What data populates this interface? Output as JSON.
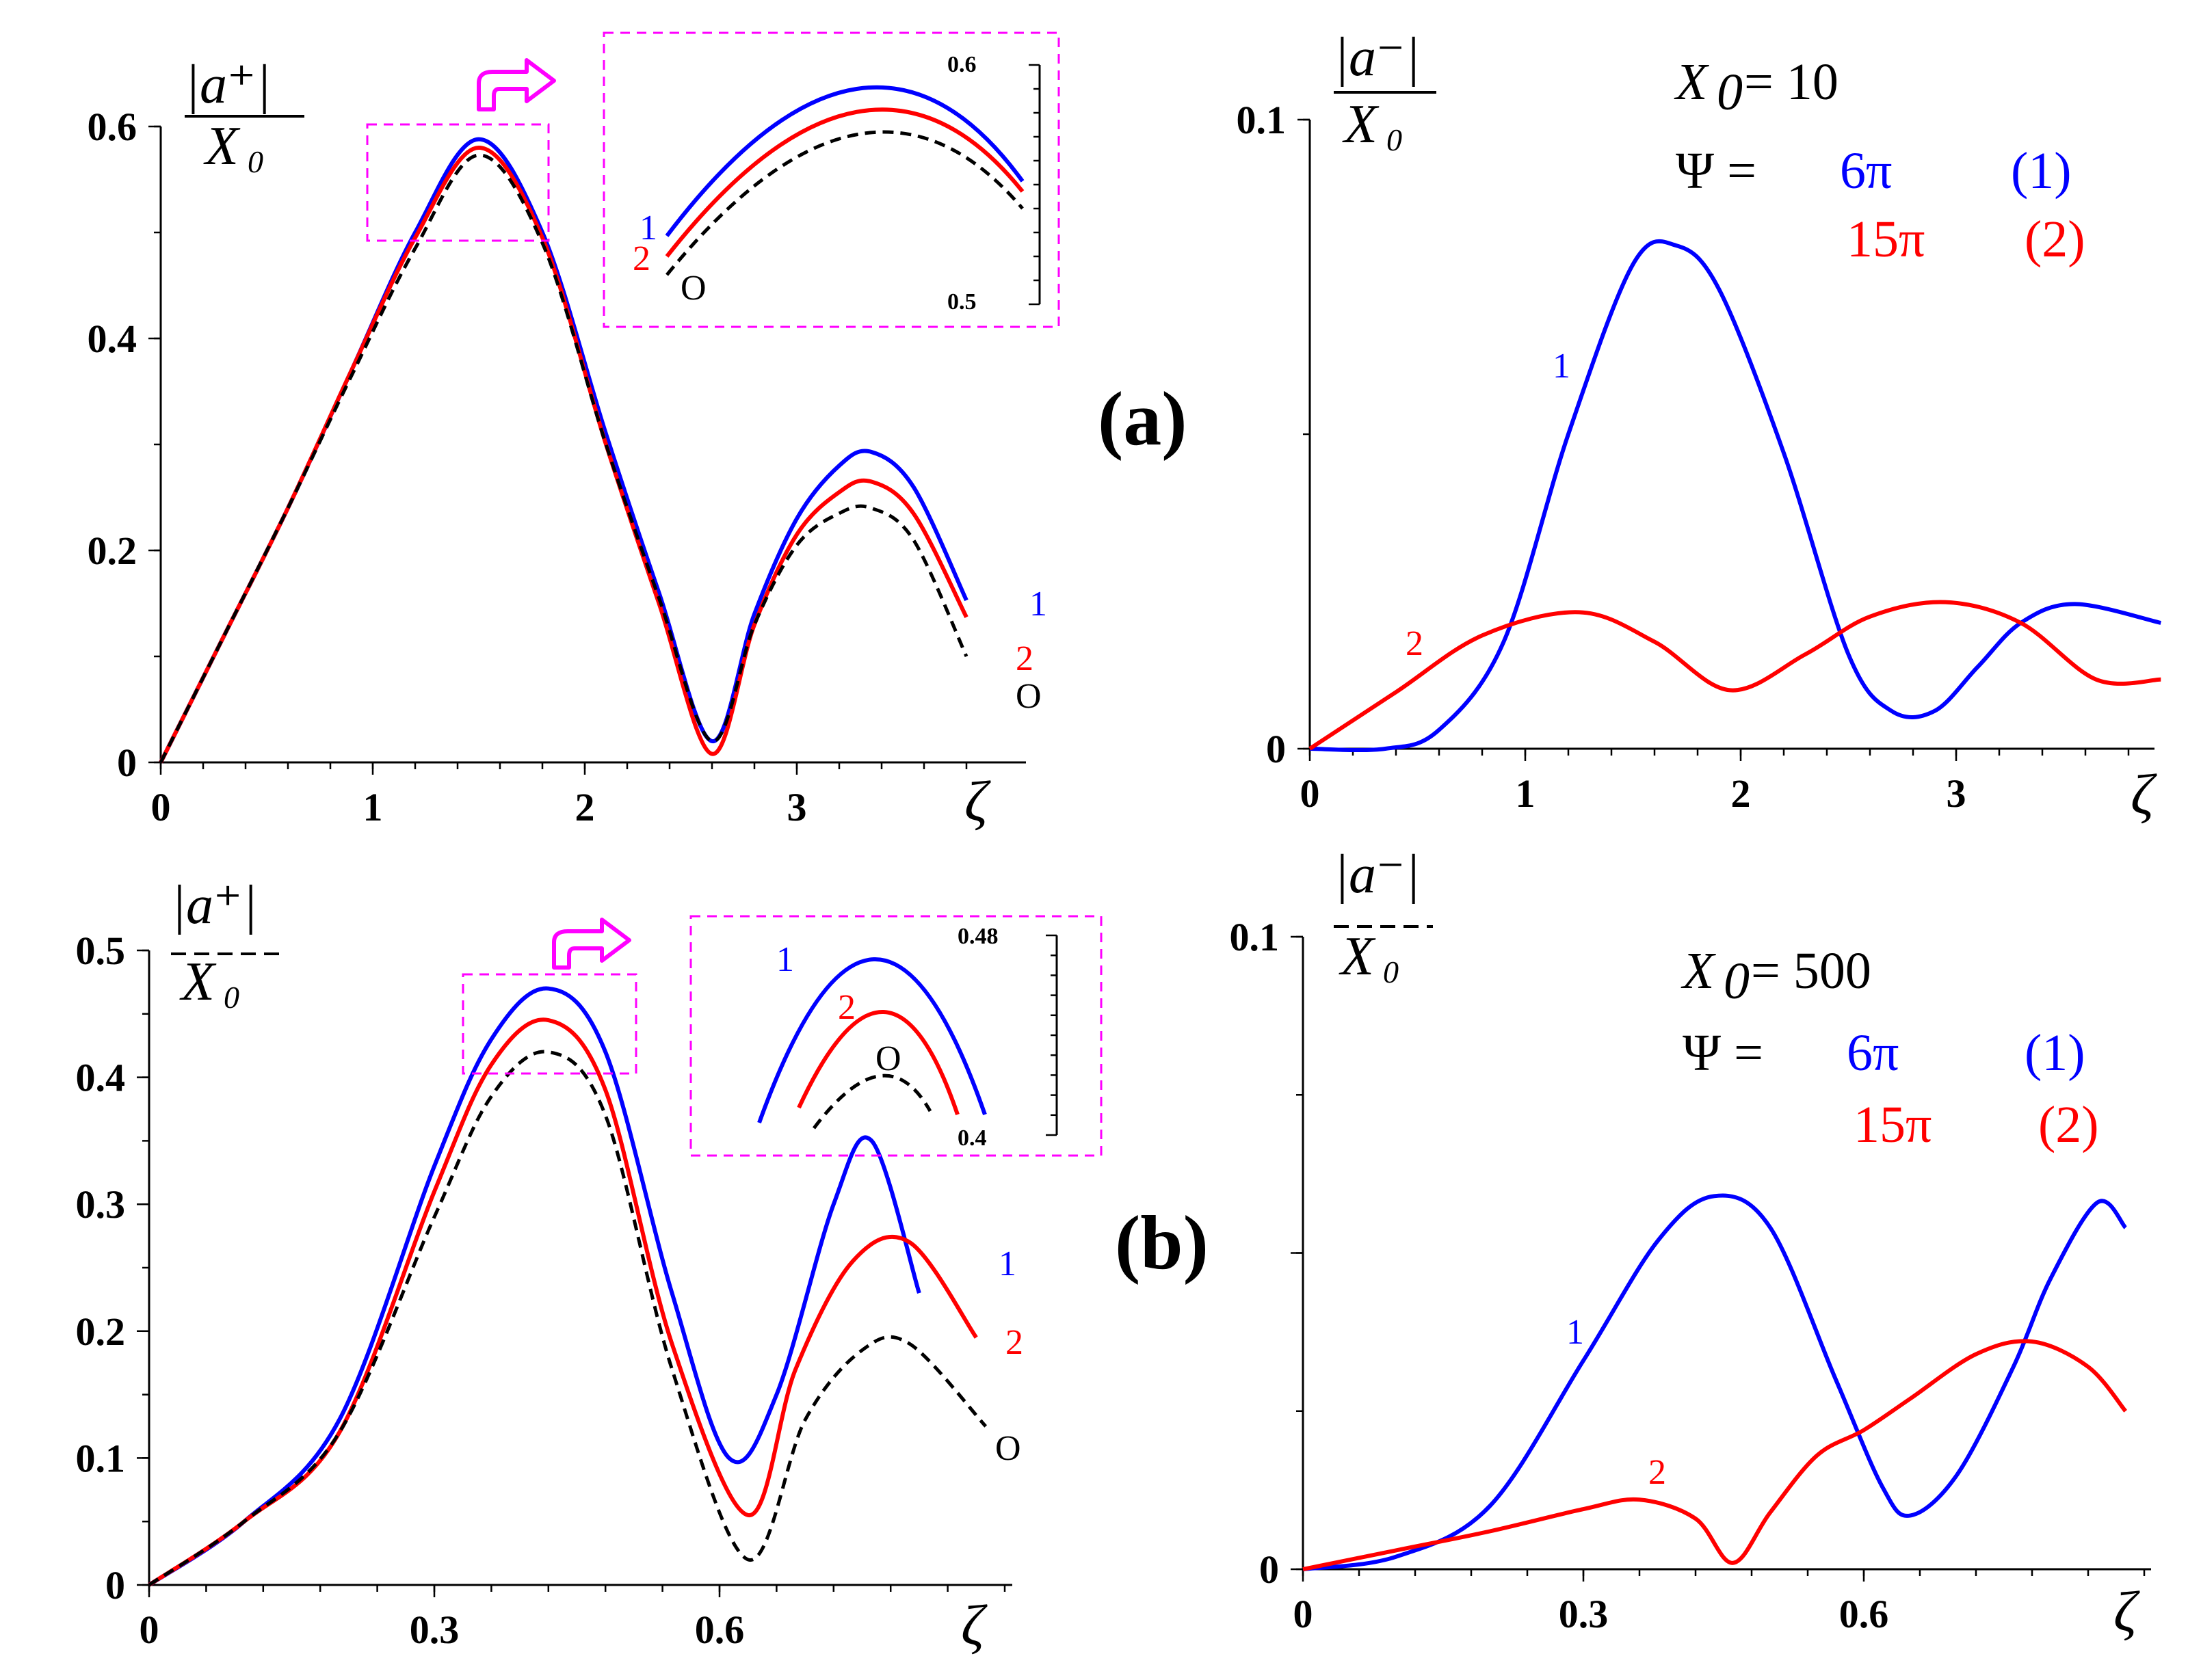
{
  "figure": {
    "colors": {
      "series1": "#0000ff",
      "series2": "#ff0000",
      "series0": "#000000",
      "inset_box": "#ff00ff",
      "arrow": "#ff00ff"
    }
  },
  "panel_a": {
    "tag": "(a)",
    "x0_label": "X",
    "x0_sub": "0",
    "x0_eq": "= 10",
    "psi_label": "Ψ =",
    "psi1": "6π",
    "psi1_tag": "(1)",
    "psi2": "15π",
    "psi2_tag": "(2)"
  },
  "panel_b": {
    "tag": "(b)",
    "x0_label": "X",
    "x0_sub": "0",
    "x0_eq": "= 500",
    "psi_label": "Ψ =",
    "psi1": "6π",
    "psi1_tag": "(1)",
    "psi2": "15π",
    "psi2_tag": "(2)"
  },
  "chart_data": [
    {
      "id": "a_left",
      "type": "line",
      "ylabel_num": "|a⁺|",
      "ylabel_den": "X",
      "ylabel_den_sub": "0",
      "xlabel": "ζ",
      "xlim": [
        0,
        3.95
      ],
      "ylim": [
        0,
        0.6
      ],
      "xticks": [
        0,
        1,
        2,
        3
      ],
      "xtick_labels": [
        "0",
        "1",
        "2",
        "3"
      ],
      "yticks": [
        0,
        0.2,
        0.4,
        0.6
      ],
      "ytick_labels": [
        "0",
        "0.2",
        "0.4",
        "0.6"
      ],
      "series": [
        {
          "name": "1",
          "color": "#0000ff",
          "dashed": false,
          "x": [
            0,
            0.3,
            0.6,
            0.9,
            1.2,
            1.5,
            1.8,
            2.1,
            2.35,
            2.6,
            2.8,
            3.0,
            3.2,
            3.35,
            3.55,
            3.8
          ],
          "y": [
            0,
            0.12,
            0.24,
            0.37,
            0.5,
            0.588,
            0.5,
            0.31,
            0.16,
            0.02,
            0.14,
            0.23,
            0.28,
            0.293,
            0.26,
            0.153
          ]
        },
        {
          "name": "2",
          "color": "#ff0000",
          "dashed": false,
          "x": [
            0,
            0.3,
            0.6,
            0.9,
            1.2,
            1.5,
            1.8,
            2.1,
            2.35,
            2.6,
            2.8,
            3.0,
            3.2,
            3.35,
            3.55,
            3.8
          ],
          "y": [
            0,
            0.12,
            0.24,
            0.37,
            0.495,
            0.58,
            0.495,
            0.3,
            0.15,
            0.008,
            0.13,
            0.215,
            0.255,
            0.265,
            0.235,
            0.137
          ]
        },
        {
          "name": "O",
          "color": "#000000",
          "dashed": true,
          "x": [
            0,
            0.3,
            0.6,
            0.9,
            1.2,
            1.5,
            1.8,
            2.1,
            2.35,
            2.6,
            2.8,
            3.0,
            3.2,
            3.35,
            3.55,
            3.8
          ],
          "y": [
            0,
            0.12,
            0.24,
            0.365,
            0.485,
            0.573,
            0.49,
            0.3,
            0.155,
            0.02,
            0.13,
            0.205,
            0.235,
            0.24,
            0.21,
            0.1
          ]
        }
      ],
      "curve_tags": [
        "1",
        "2",
        "O"
      ],
      "inset": {
        "ylim": [
          0.5,
          0.6
        ],
        "yticks": [
          0.5,
          0.6
        ],
        "ytick_labels": [
          "0.5",
          "0.6"
        ],
        "tags": [
          "1",
          "2",
          "O"
        ]
      }
    },
    {
      "id": "a_right",
      "type": "line",
      "ylabel_num": "|a⁻|",
      "ylabel_den": "X",
      "ylabel_den_sub": "0",
      "xlabel": "ζ",
      "xlim": [
        0,
        3.95
      ],
      "ylim": [
        0,
        0.1
      ],
      "xticks": [
        0,
        1,
        2,
        3
      ],
      "xtick_labels": [
        "0",
        "1",
        "2",
        "3"
      ],
      "yticks": [
        0,
        0.1
      ],
      "ytick_labels": [
        "0",
        "0.1"
      ],
      "series": [
        {
          "name": "1",
          "color": "#0000ff",
          "dashed": false,
          "x": [
            0,
            0.35,
            0.6,
            0.9,
            1.2,
            1.5,
            1.7,
            1.9,
            2.2,
            2.5,
            2.7,
            2.9,
            3.1,
            3.3,
            3.55,
            3.95
          ],
          "y": [
            0,
            0,
            0.003,
            0.017,
            0.05,
            0.077,
            0.08,
            0.073,
            0.047,
            0.015,
            0.006,
            0.006,
            0.013,
            0.02,
            0.023,
            0.02
          ]
        },
        {
          "name": "2",
          "color": "#ff0000",
          "dashed": false,
          "x": [
            0,
            0.4,
            0.8,
            1.25,
            1.6,
            1.95,
            2.3,
            2.6,
            2.95,
            3.3,
            3.65,
            3.95
          ],
          "y": [
            0,
            0.009,
            0.018,
            0.0217,
            0.017,
            0.0093,
            0.015,
            0.021,
            0.0233,
            0.02,
            0.011,
            0.011
          ]
        }
      ],
      "curve_tags": [
        "1",
        "2"
      ]
    },
    {
      "id": "b_left",
      "type": "line",
      "ylabel_num": "|a⁺|",
      "ylabel_den": "X",
      "ylabel_den_sub": "0",
      "xlabel": "ζ",
      "xlim": [
        0,
        0.9
      ],
      "ylim": [
        0,
        0.5
      ],
      "xticks": [
        0,
        0.3,
        0.6
      ],
      "xtick_labels": [
        "0",
        "0.3",
        "0.6"
      ],
      "yticks": [
        0,
        0.1,
        0.2,
        0.3,
        0.4,
        0.5
      ],
      "ytick_labels": [
        "0",
        "0.1",
        "0.2",
        "0.3",
        "0.4",
        "0.5"
      ],
      "series": [
        {
          "name": "1",
          "color": "#0000ff",
          "dashed": false,
          "x": [
            0,
            0.1,
            0.2,
            0.3,
            0.36,
            0.42,
            0.48,
            0.55,
            0.61,
            0.66,
            0.72,
            0.76,
            0.81
          ],
          "y": [
            0,
            0.05,
            0.13,
            0.33,
            0.43,
            0.47,
            0.42,
            0.23,
            0.1,
            0.15,
            0.3,
            0.35,
            0.23
          ]
        },
        {
          "name": "2",
          "color": "#ff0000",
          "dashed": false,
          "x": [
            0,
            0.1,
            0.2,
            0.3,
            0.36,
            0.42,
            0.48,
            0.55,
            0.63,
            0.68,
            0.74,
            0.8,
            0.87
          ],
          "y": [
            0,
            0.05,
            0.12,
            0.31,
            0.41,
            0.445,
            0.39,
            0.19,
            0.055,
            0.17,
            0.255,
            0.27,
            0.195
          ]
        },
        {
          "name": "O",
          "color": "#000000",
          "dashed": true,
          "x": [
            0,
            0.1,
            0.2,
            0.3,
            0.36,
            0.42,
            0.48,
            0.55,
            0.63,
            0.69,
            0.75,
            0.8,
            0.88
          ],
          "y": [
            0,
            0.05,
            0.12,
            0.29,
            0.385,
            0.42,
            0.37,
            0.17,
            0.02,
            0.13,
            0.185,
            0.19,
            0.125
          ]
        }
      ],
      "curve_tags": [
        "1",
        "2",
        "O"
      ],
      "inset": {
        "ylim": [
          0.4,
          0.48
        ],
        "yticks": [
          0.4,
          0.48
        ],
        "ytick_labels": [
          "0.4",
          "0.48"
        ],
        "tags": [
          "1",
          "2",
          "O"
        ]
      }
    },
    {
      "id": "b_right",
      "type": "line",
      "ylabel_num": "|a⁻|",
      "ylabel_den": "X",
      "ylabel_den_sub": "0",
      "xlabel": "ζ",
      "xlim": [
        0,
        0.9
      ],
      "ylim": [
        0,
        0.1
      ],
      "xticks": [
        0,
        0.3,
        0.6
      ],
      "xtick_labels": [
        "0",
        "0.3",
        "0.6"
      ],
      "yticks": [
        0,
        0.05,
        0.1
      ],
      "ytick_labels": [
        "0",
        "",
        "0.1"
      ],
      "series": [
        {
          "name": "1",
          "color": "#0000ff",
          "dashed": false,
          "x": [
            0,
            0.1,
            0.2,
            0.3,
            0.38,
            0.44,
            0.5,
            0.57,
            0.62,
            0.65,
            0.7,
            0.76,
            0.8,
            0.85,
            0.88
          ],
          "y": [
            0,
            0.002,
            0.01,
            0.033,
            0.052,
            0.059,
            0.054,
            0.03,
            0.013,
            0.0085,
            0.015,
            0.032,
            0.046,
            0.058,
            0.054
          ]
        },
        {
          "name": "2",
          "color": "#ff0000",
          "dashed": false,
          "x": [
            0,
            0.1,
            0.2,
            0.3,
            0.36,
            0.42,
            0.46,
            0.5,
            0.55,
            0.6,
            0.65,
            0.72,
            0.78,
            0.84,
            0.88
          ],
          "y": [
            0,
            0.003,
            0.006,
            0.0095,
            0.011,
            0.008,
            0.001,
            0.009,
            0.018,
            0.022,
            0.027,
            0.034,
            0.036,
            0.032,
            0.025
          ]
        }
      ],
      "curve_tags": [
        "1",
        "2"
      ]
    }
  ]
}
